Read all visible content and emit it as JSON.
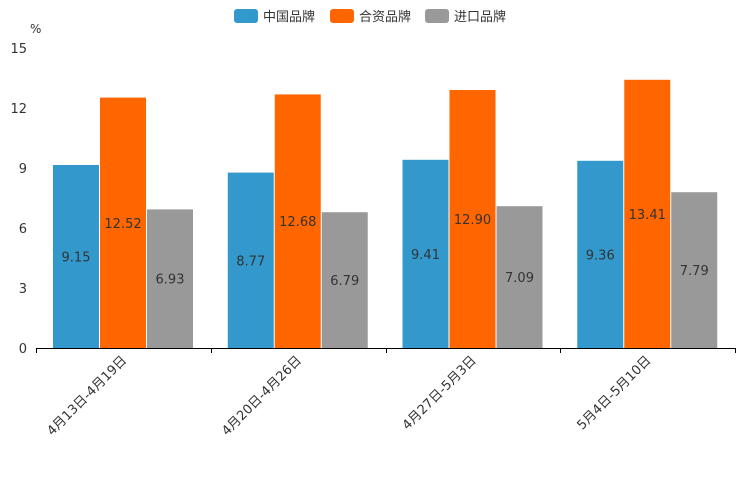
{
  "chart_data": {
    "type": "bar",
    "title": "",
    "xlabel": "",
    "ylabel": "",
    "unit_label": "%",
    "ylim": [
      0,
      15
    ],
    "yticks": [
      "0",
      "3",
      "6",
      "9",
      "12",
      "15"
    ],
    "grid": false,
    "legend_position": "top-center",
    "categories": [
      "4月13日-4月19日",
      "4月20日-4月26日",
      "4月27日-5月3日",
      "5月4日-5月10日"
    ],
    "series": [
      {
        "name": "中国品牌",
        "color": "#3399CC",
        "values": [
          9.15,
          8.77,
          9.41,
          9.36
        ],
        "labels": [
          "9.15",
          "8.77",
          "9.41",
          "9.36"
        ]
      },
      {
        "name": "合资品牌",
        "color": "#FF6600",
        "values": [
          12.52,
          12.68,
          12.9,
          13.41
        ],
        "labels": [
          "12.52",
          "12.68",
          "12.90",
          "13.41"
        ]
      },
      {
        "name": "进口品牌",
        "color": "#999999",
        "values": [
          6.93,
          6.79,
          7.09,
          7.79
        ],
        "labels": [
          "6.93",
          "6.79",
          "7.09",
          "7.79"
        ]
      }
    ]
  }
}
